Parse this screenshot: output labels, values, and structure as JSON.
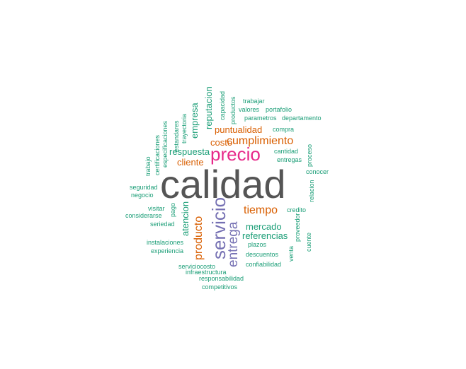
{
  "colors": {
    "grey": "#555555",
    "magenta": "#e7298a",
    "purple": "#7570b3",
    "orange": "#d95f02",
    "teal": "#1b9e77"
  },
  "words": [
    {
      "text": "calidad",
      "color": "grey"
    },
    {
      "text": "precio",
      "color": "magenta"
    },
    {
      "text": "servicio",
      "color": "purple"
    },
    {
      "text": "entrega",
      "color": "purple"
    },
    {
      "text": "producto",
      "color": "orange"
    },
    {
      "text": "tiempo",
      "color": "orange"
    },
    {
      "text": "cumplimiento",
      "color": "orange"
    },
    {
      "text": "cliente",
      "color": "orange"
    },
    {
      "text": "costo",
      "color": "orange"
    },
    {
      "text": "puntualidad",
      "color": "orange"
    },
    {
      "text": "referencias",
      "color": "teal"
    },
    {
      "text": "respuesta",
      "color": "teal"
    },
    {
      "text": "mercado",
      "color": "teal"
    },
    {
      "text": "atencion",
      "color": "teal"
    },
    {
      "text": "empresa",
      "color": "teal"
    },
    {
      "text": "reputacion",
      "color": "teal"
    },
    {
      "text": "productos",
      "color": "teal"
    },
    {
      "text": "capacidad",
      "color": "teal"
    },
    {
      "text": "trabajar",
      "color": "teal"
    },
    {
      "text": "valores",
      "color": "teal"
    },
    {
      "text": "portafolio",
      "color": "teal"
    },
    {
      "text": "parametros",
      "color": "teal"
    },
    {
      "text": "departamento",
      "color": "teal"
    },
    {
      "text": "compra",
      "color": "teal"
    },
    {
      "text": "cantidad",
      "color": "teal"
    },
    {
      "text": "entregas",
      "color": "teal"
    },
    {
      "text": "proceso",
      "color": "teal"
    },
    {
      "text": "conocer",
      "color": "teal"
    },
    {
      "text": "relacion",
      "color": "teal"
    },
    {
      "text": "credito",
      "color": "teal"
    },
    {
      "text": "proveedor",
      "color": "teal"
    },
    {
      "text": "venta",
      "color": "teal"
    },
    {
      "text": "cuente",
      "color": "teal"
    },
    {
      "text": "plazos",
      "color": "teal"
    },
    {
      "text": "descuentos",
      "color": "teal"
    },
    {
      "text": "confiabilidad",
      "color": "teal"
    },
    {
      "text": "serviciocosto",
      "color": "teal"
    },
    {
      "text": "infraestructura",
      "color": "teal"
    },
    {
      "text": "responsabilidad",
      "color": "teal"
    },
    {
      "text": "competitivos",
      "color": "teal"
    },
    {
      "text": "experiencia",
      "color": "teal"
    },
    {
      "text": "instalaciones",
      "color": "teal"
    },
    {
      "text": "seriedad",
      "color": "teal"
    },
    {
      "text": "considerarse",
      "color": "teal"
    },
    {
      "text": "visitar",
      "color": "teal"
    },
    {
      "text": "pago",
      "color": "teal"
    },
    {
      "text": "negocio",
      "color": "teal"
    },
    {
      "text": "seguridad",
      "color": "teal"
    },
    {
      "text": "trabajo",
      "color": "teal"
    },
    {
      "text": "certificaciones",
      "color": "teal"
    },
    {
      "text": "especificaciones",
      "color": "teal"
    },
    {
      "text": "estandares",
      "color": "teal"
    },
    {
      "text": "trayectoria",
      "color": "teal"
    }
  ]
}
